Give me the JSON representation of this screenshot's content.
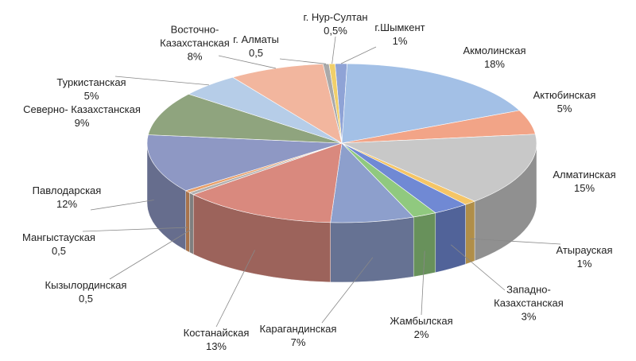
{
  "chart_data": {
    "type": "pie",
    "three_d": true,
    "categories": [
      "г.Шымкент",
      "Акмолинская",
      "Актюбинская",
      "Алматинская",
      "Атырауская",
      "Западно- Казахстанская",
      "Жамбылская",
      "Карагандинская",
      "Костанайская",
      "Кызылординская",
      "Мангыстауская",
      "Павлодарская",
      "Северно- Казахстанская",
      "Туркистанская",
      "Восточно- Казахстанская",
      "г. Алматы",
      "г. Нур-Султан"
    ],
    "values": [
      1,
      18,
      5,
      15,
      1,
      3,
      2,
      7,
      13,
      0.5,
      0.5,
      12,
      9,
      5,
      8,
      0.5,
      0.5
    ],
    "value_labels": [
      "1%",
      "18%",
      "5%",
      "15%",
      "1%",
      "3%",
      "2%",
      "7%",
      "13%",
      "0,5",
      "0,5",
      "12%",
      "9%",
      "5%",
      "8%",
      "0,5",
      "0,5%"
    ],
    "colors": [
      "#8fa3d6",
      "#a3c0e6",
      "#f2a487",
      "#c8c8c8",
      "#f5c566",
      "#7089d4",
      "#90c97f",
      "#8d9fcc",
      "#d9897e",
      "#b0b0b0",
      "#e8a06a",
      "#8e98c4",
      "#8fa47e",
      "#b6cde8",
      "#f2b69e",
      "#a9a9a9",
      "#f0cf6a"
    ]
  }
}
